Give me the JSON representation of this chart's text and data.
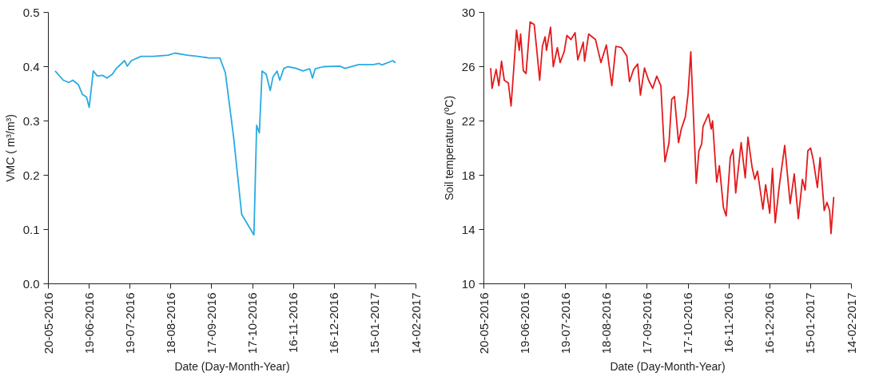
{
  "chart_data": [
    {
      "type": "line",
      "xlabel": "Date (Day-Month-Year)",
      "ylabel": "VMC ( m³/m³)",
      "grid": false,
      "x": [
        "2016-05-25",
        "2016-05-31",
        "2016-06-04",
        "2016-06-07",
        "2016-06-11",
        "2016-06-14",
        "2016-06-17",
        "2016-06-19",
        "2016-06-22",
        "2016-06-25",
        "2016-06-29",
        "2016-07-02",
        "2016-07-06",
        "2016-07-09",
        "2016-07-15",
        "2016-07-17",
        "2016-07-20",
        "2016-07-27",
        "2016-08-05",
        "2016-08-16",
        "2016-08-21",
        "2016-08-30",
        "2016-09-07",
        "2016-09-15",
        "2016-09-23",
        "2016-09-27",
        "2016-10-03",
        "2016-10-09",
        "2016-10-18",
        "2016-10-20",
        "2016-10-22",
        "2016-10-24",
        "2016-10-27",
        "2016-10-30",
        "2016-11-01",
        "2016-11-04",
        "2016-11-06",
        "2016-11-09",
        "2016-11-12",
        "2016-11-18",
        "2016-11-23",
        "2016-11-28",
        "2016-11-30",
        "2016-12-02",
        "2016-12-08",
        "2016-12-20",
        "2016-12-24",
        "2017-01-03",
        "2017-01-14",
        "2017-01-18",
        "2017-01-20",
        "2017-01-28",
        "2017-01-30"
      ],
      "series": [
        {
          "color": "#29abe2",
          "values": [
            0.392,
            0.375,
            0.371,
            0.375,
            0.367,
            0.349,
            0.344,
            0.325,
            0.392,
            0.383,
            0.384,
            0.379,
            0.386,
            0.397,
            0.411,
            0.401,
            0.411,
            0.419,
            0.419,
            0.421,
            0.425,
            0.421,
            0.419,
            0.416,
            0.416,
            0.389,
            0.272,
            0.128,
            0.09,
            0.292,
            0.278,
            0.392,
            0.386,
            0.356,
            0.381,
            0.392,
            0.375,
            0.397,
            0.4,
            0.397,
            0.392,
            0.396,
            0.379,
            0.396,
            0.4,
            0.401,
            0.397,
            0.404,
            0.404,
            0.406,
            0.403,
            0.411,
            0.407
          ]
        }
      ],
      "xlim": [
        "2016-05-20",
        "2017-02-14"
      ],
      "xticks": [
        {
          "value": "2016-05-20",
          "label": "20-05-2016"
        },
        {
          "value": "2016-06-19",
          "label": "19-06-2016"
        },
        {
          "value": "2016-07-19",
          "label": "19-07-2016"
        },
        {
          "value": "2016-08-18",
          "label": "18-08-2016"
        },
        {
          "value": "2016-09-17",
          "label": "17-09-2016"
        },
        {
          "value": "2016-10-17",
          "label": "17-10-2016"
        },
        {
          "value": "2016-11-16",
          "label": "16-11-2016"
        },
        {
          "value": "2016-12-16",
          "label": "16-12-2016"
        },
        {
          "value": "2017-01-15",
          "label": "15-01-2017"
        },
        {
          "value": "2017-02-14",
          "label": "14-02-2017"
        }
      ],
      "ylim": [
        0,
        0.5
      ],
      "yticks": [
        {
          "value": 0,
          "label": "0.0"
        },
        0.1,
        0.2,
        0.3,
        0.4,
        0.5
      ]
    },
    {
      "type": "line",
      "xlabel": "Date (Day-Month-Year)",
      "ylabel": "Soil temperature (ºC)",
      "grid": false,
      "x": [
        "2016-05-25",
        "2016-05-26",
        "2016-05-29",
        "2016-05-31",
        "2016-06-02",
        "2016-06-04",
        "2016-06-07",
        "2016-06-09",
        "2016-06-13",
        "2016-06-15",
        "2016-06-16",
        "2016-06-18",
        "2016-06-20",
        "2016-06-23",
        "2016-06-26",
        "2016-06-28",
        "2016-06-30",
        "2016-07-02",
        "2016-07-04",
        "2016-07-05",
        "2016-07-08",
        "2016-07-10",
        "2016-07-13",
        "2016-07-15",
        "2016-07-18",
        "2016-07-20",
        "2016-07-23",
        "2016-07-26",
        "2016-07-28",
        "2016-08-01",
        "2016-08-02",
        "2016-08-05",
        "2016-08-10",
        "2016-08-14",
        "2016-08-18",
        "2016-08-22",
        "2016-08-25",
        "2016-08-29",
        "2016-09-02",
        "2016-09-04",
        "2016-09-07",
        "2016-09-10",
        "2016-09-12",
        "2016-09-15",
        "2016-09-18",
        "2016-09-21",
        "2016-09-24",
        "2016-09-27",
        "2016-09-30",
        "2016-10-03",
        "2016-10-05",
        "2016-10-07",
        "2016-10-10",
        "2016-10-12",
        "2016-10-15",
        "2016-10-17",
        "2016-10-19",
        "2016-10-23",
        "2016-10-25",
        "2016-10-27",
        "2016-10-28",
        "2016-11-01",
        "2016-11-03",
        "2016-11-04",
        "2016-11-07",
        "2016-11-09",
        "2016-11-12",
        "2016-11-14",
        "2016-11-17",
        "2016-11-19",
        "2016-11-21",
        "2016-11-25",
        "2016-11-28",
        "2016-11-30",
        "2016-12-03",
        "2016-12-05",
        "2016-12-07",
        "2016-12-11",
        "2016-12-13",
        "2016-12-16",
        "2016-12-18",
        "2016-12-20",
        "2016-12-23",
        "2016-12-27",
        "2016-12-31",
        "2017-01-03",
        "2017-01-06",
        "2017-01-09",
        "2017-01-11",
        "2017-01-13",
        "2017-01-15",
        "2017-01-17",
        "2017-01-20",
        "2017-01-22",
        "2017-01-25",
        "2017-01-27",
        "2017-01-29",
        "2017-01-30",
        "2017-02-01"
      ],
      "series": [
        {
          "color": "#e41a1c",
          "values": [
            25.9,
            24.4,
            25.8,
            24.6,
            26.4,
            25.0,
            24.8,
            23.1,
            28.7,
            27.2,
            28.4,
            25.7,
            25.5,
            29.3,
            29.1,
            27.1,
            25.0,
            27.5,
            28.2,
            27.2,
            28.9,
            26.0,
            27.4,
            26.3,
            27.1,
            28.3,
            28.0,
            28.5,
            26.5,
            27.8,
            26.4,
            28.4,
            28.0,
            26.3,
            27.6,
            24.6,
            27.5,
            27.4,
            26.8,
            24.9,
            25.8,
            26.2,
            23.9,
            25.9,
            25.0,
            24.4,
            25.3,
            24.6,
            19.0,
            20.4,
            23.6,
            23.8,
            20.4,
            21.4,
            22.3,
            24.0,
            27.1,
            17.4,
            19.8,
            20.3,
            21.6,
            22.5,
            21.4,
            22.0,
            17.5,
            18.7,
            15.6,
            15.0,
            19.3,
            19.9,
            16.7,
            20.4,
            17.8,
            20.8,
            18.6,
            17.7,
            18.3,
            15.5,
            17.3,
            15.2,
            18.5,
            14.5,
            17.2,
            20.2,
            15.9,
            18.1,
            14.8,
            17.7,
            16.9,
            19.8,
            20.0,
            19.1,
            17.1,
            19.3,
            15.4,
            16.0,
            15.4,
            13.7,
            16.4
          ]
        }
      ],
      "xlim": [
        "2016-05-20",
        "2017-02-14"
      ],
      "xticks": [
        {
          "value": "2016-05-20",
          "label": "20-05-2016"
        },
        {
          "value": "2016-06-19",
          "label": "19-06-2016"
        },
        {
          "value": "2016-07-19",
          "label": "19-07-2016"
        },
        {
          "value": "2016-08-18",
          "label": "18-08-2016"
        },
        {
          "value": "2016-09-17",
          "label": "17-09-2016"
        },
        {
          "value": "2016-10-17",
          "label": "17-10-2016"
        },
        {
          "value": "2016-11-16",
          "label": "16-11-2016"
        },
        {
          "value": "2016-12-16",
          "label": "16-12-2016"
        },
        {
          "value": "2017-01-15",
          "label": "15-01-2017"
        },
        {
          "value": "2017-02-14",
          "label": "14-02-2017"
        }
      ],
      "ylim": [
        10,
        30
      ],
      "yticks": [
        10,
        14,
        18,
        22,
        26,
        30
      ]
    }
  ]
}
